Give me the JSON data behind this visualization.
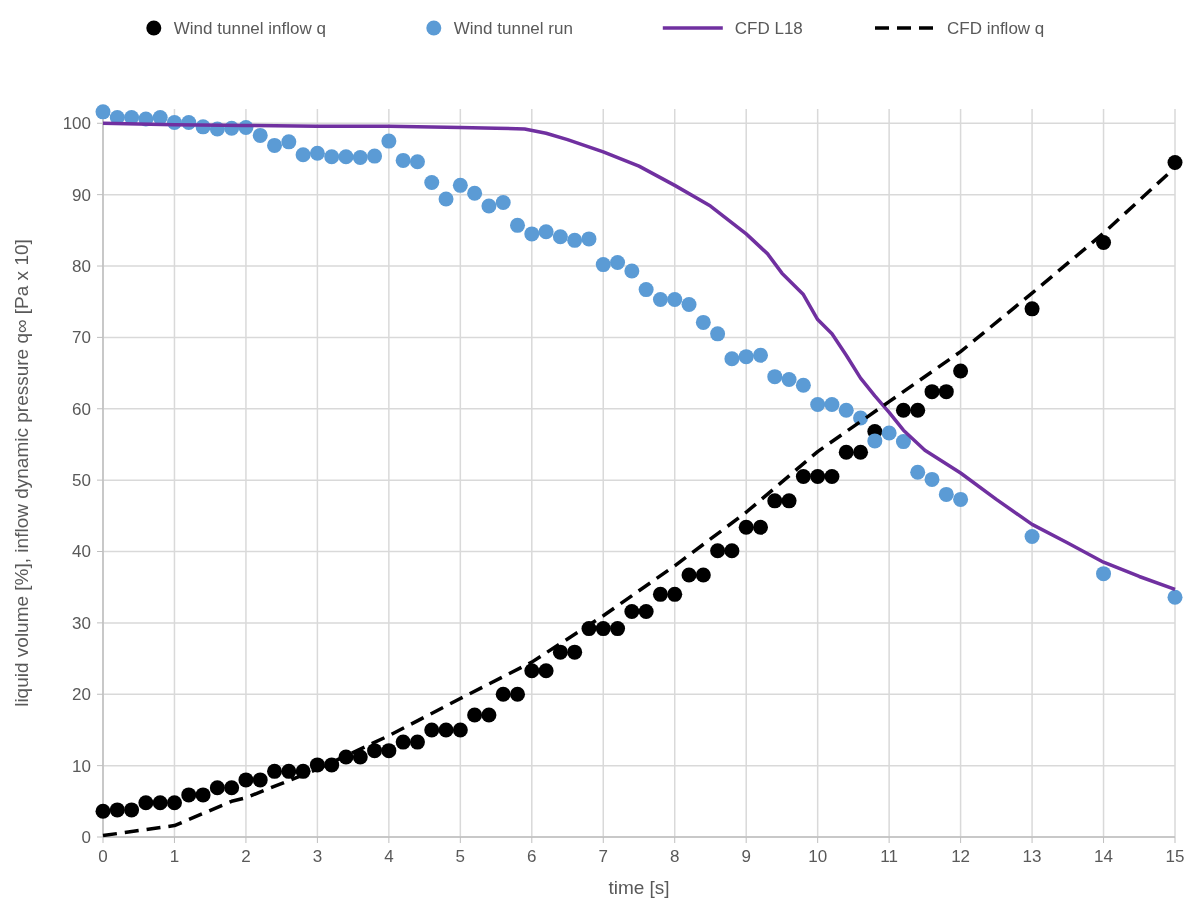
{
  "chart_data": {
    "type": "scatter",
    "xlabel": "time [s]",
    "ylabel": "liquid volume [%],   inflow dynamic pressure q∞ [Pa x 10]",
    "xlim": [
      0,
      15
    ],
    "xticks": [
      0,
      1,
      2,
      3,
      4,
      5,
      6,
      7,
      8,
      9,
      10,
      11,
      12,
      13,
      14,
      15
    ],
    "ylim": [
      0,
      102
    ],
    "yticks": [
      0,
      10,
      20,
      30,
      40,
      50,
      60,
      70,
      80,
      90,
      100
    ],
    "grid": true,
    "legend": "top",
    "series": [
      {
        "name": "Wind tunnel inflow q",
        "type": "scatter",
        "marker": "circle",
        "color": "#000000",
        "x": [
          0,
          0.2,
          0.4,
          0.6,
          0.8,
          1,
          1.2,
          1.4,
          1.6,
          1.8,
          2,
          2.2,
          2.4,
          2.6,
          2.8,
          3,
          3.2,
          3.4,
          3.6,
          3.8,
          4,
          4.2,
          4.4,
          4.6,
          4.8,
          5,
          5.2,
          5.4,
          5.6,
          5.8,
          6,
          6.2,
          6.4,
          6.6,
          6.8,
          7,
          7.2,
          7.4,
          7.6,
          7.8,
          8,
          8.2,
          8.4,
          8.6,
          8.8,
          9,
          9.2,
          9.4,
          9.6,
          9.8,
          10,
          10.2,
          10.4,
          10.6,
          10.8,
          11.2,
          11.4,
          11.6,
          11.8,
          12,
          13,
          14,
          15
        ],
        "values": [
          3.6,
          3.8,
          3.8,
          4.8,
          4.8,
          4.8,
          5.9,
          5.9,
          6.9,
          6.9,
          8,
          8,
          9.2,
          9.2,
          9.2,
          10.1,
          10.1,
          11.2,
          11.2,
          12.1,
          12.1,
          13.3,
          13.3,
          15,
          15,
          15,
          17.1,
          17.1,
          20,
          20,
          23.3,
          23.3,
          25.9,
          25.9,
          29.2,
          29.2,
          29.2,
          31.6,
          31.6,
          34,
          34,
          36.7,
          36.7,
          40.1,
          40.1,
          43.4,
          43.4,
          47.1,
          47.1,
          50.5,
          50.5,
          50.5,
          53.9,
          53.9,
          56.8,
          59.8,
          59.8,
          62.4,
          62.4,
          65.3,
          74,
          83.3,
          94.5
        ]
      },
      {
        "name": "Wind tunnel run",
        "type": "scatter",
        "marker": "circle",
        "color": "#5b9bd5",
        "x": [
          0,
          0.2,
          0.4,
          0.6,
          0.8,
          1,
          1.2,
          1.4,
          1.6,
          1.8,
          2,
          2.2,
          2.4,
          2.6,
          2.8,
          3,
          3.2,
          3.4,
          3.6,
          3.8,
          4,
          4.2,
          4.4,
          4.6,
          4.8,
          5,
          5.2,
          5.4,
          5.6,
          5.8,
          6,
          6.2,
          6.4,
          6.6,
          6.8,
          7,
          7.2,
          7.4,
          7.6,
          7.8,
          8,
          8.2,
          8.4,
          8.6,
          8.8,
          9,
          9.2,
          9.4,
          9.6,
          9.8,
          10,
          10.2,
          10.4,
          10.6,
          10.8,
          11,
          11.2,
          11.4,
          11.6,
          11.8,
          12,
          13,
          14,
          15
        ],
        "values": [
          101.6,
          100.8,
          100.8,
          100.6,
          100.8,
          100.1,
          100.1,
          99.5,
          99.2,
          99.3,
          99.4,
          98.3,
          96.9,
          97.4,
          95.6,
          95.8,
          95.3,
          95.3,
          95.2,
          95.4,
          97.5,
          94.8,
          94.6,
          91.7,
          89.4,
          91.3,
          90.2,
          88.4,
          88.9,
          85.7,
          84.5,
          84.8,
          84.1,
          83.6,
          83.8,
          80.2,
          80.5,
          79.3,
          76.7,
          75.3,
          75.3,
          74.6,
          72.1,
          70.5,
          67,
          67.3,
          67.5,
          64.5,
          64.1,
          63.3,
          60.6,
          60.6,
          59.8,
          58.7,
          55.5,
          56.6,
          55.4,
          51.1,
          50.1,
          48,
          47.3,
          42.1,
          36.9,
          33.6
        ]
      },
      {
        "name": "CFD L18",
        "type": "line",
        "line_style": "solid",
        "color": "#7030a0",
        "x": [
          0,
          1,
          2,
          3,
          4,
          5,
          5.5,
          5.9,
          6.2,
          6.5,
          7,
          7.5,
          8,
          8.5,
          9,
          9.3,
          9.5,
          9.8,
          10,
          10.2,
          10.4,
          10.6,
          10.8,
          11,
          11.2,
          11.5,
          12,
          12.5,
          13,
          13.5,
          14,
          14.5,
          15
        ],
        "values": [
          100,
          99.8,
          99.7,
          99.6,
          99.6,
          99.4,
          99.3,
          99.2,
          98.6,
          97.7,
          96,
          94,
          91.3,
          88.4,
          84.5,
          81.7,
          79,
          76,
          72.5,
          70.5,
          67.5,
          64.3,
          61.8,
          59.5,
          57,
          54.2,
          51,
          47.3,
          43.8,
          41.2,
          38.5,
          36.5,
          34.7
        ]
      },
      {
        "name": "CFD inflow q",
        "type": "line",
        "line_style": "dashed",
        "color": "#000000",
        "x": [
          0,
          1,
          1.8,
          2,
          3,
          4,
          5,
          6,
          7,
          8,
          9,
          10,
          11,
          12,
          13,
          14,
          15
        ],
        "values": [
          0.2,
          1.6,
          5,
          5.5,
          9.5,
          14.2,
          19.4,
          24.5,
          31,
          38,
          45.5,
          54,
          61,
          68,
          76.2,
          84.6,
          93.8
        ]
      }
    ]
  }
}
